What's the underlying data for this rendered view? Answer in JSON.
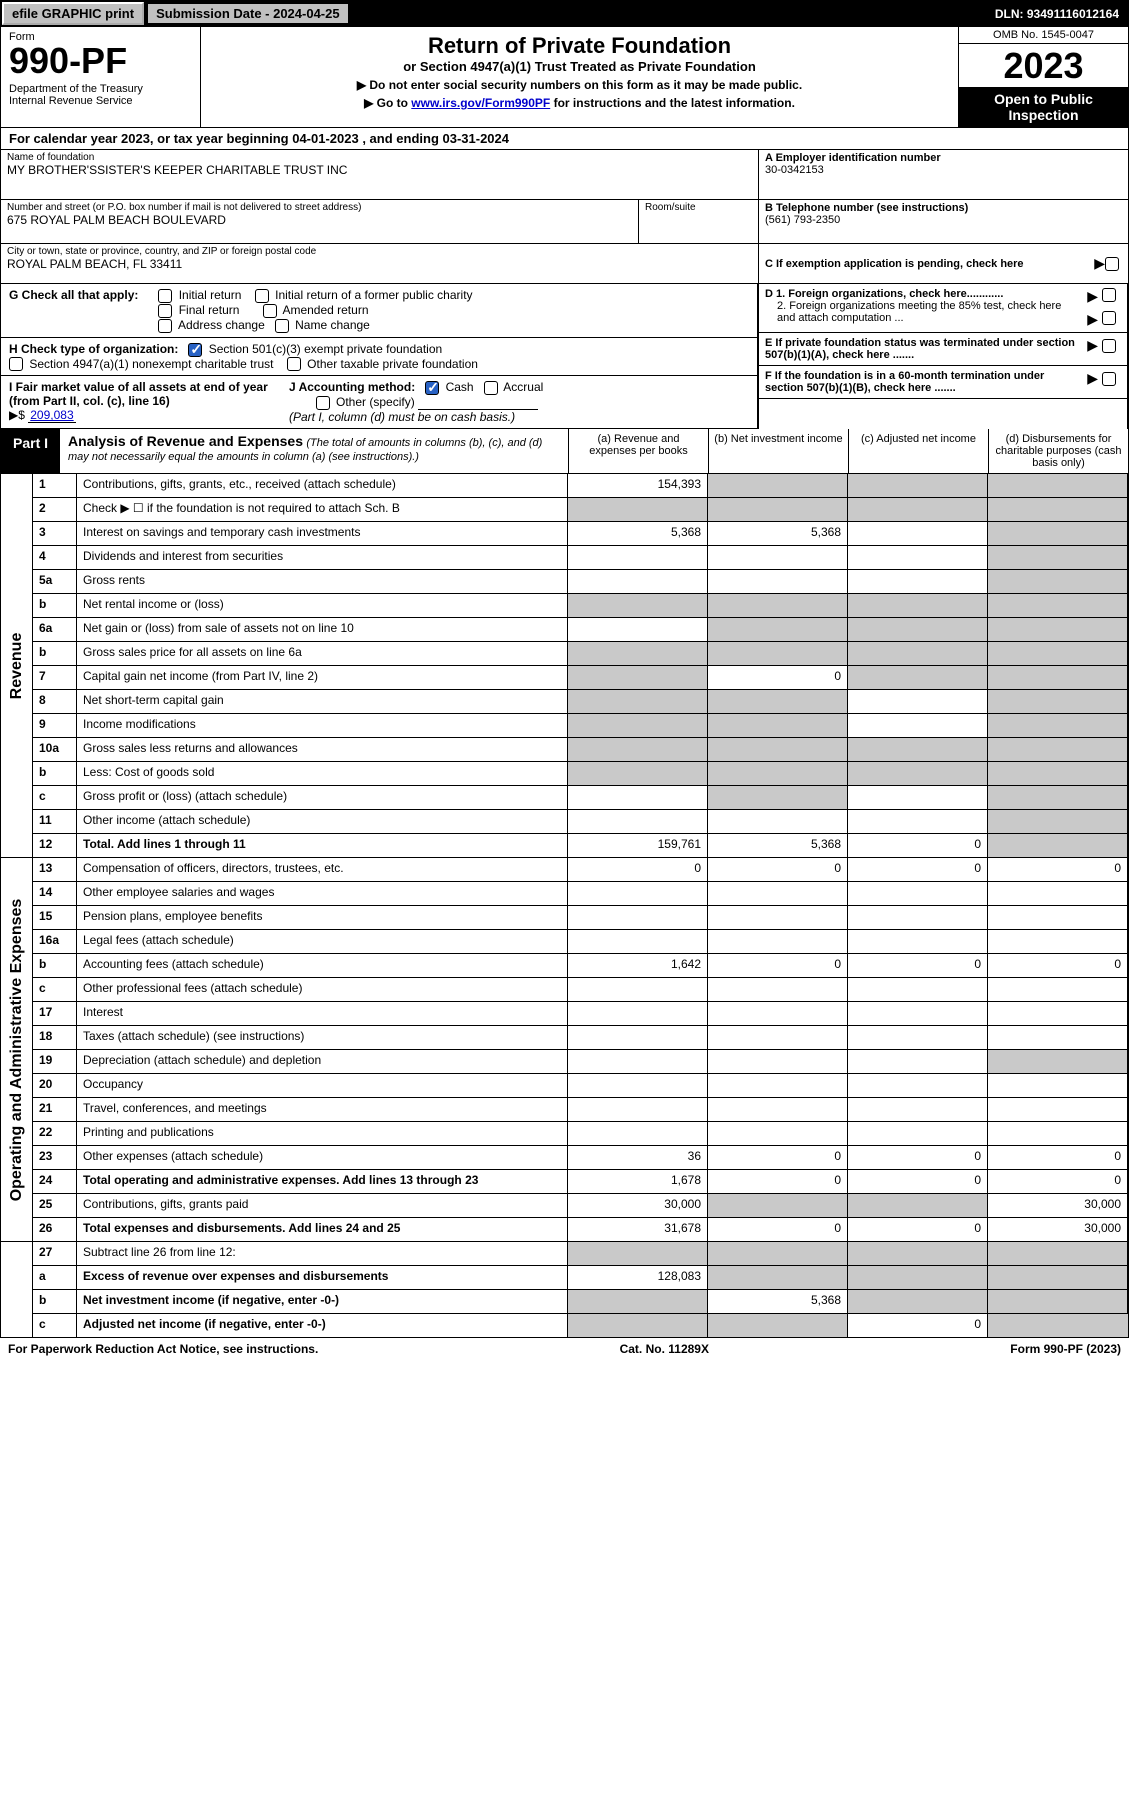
{
  "topbar": {
    "efile": "efile GRAPHIC print",
    "sub_label": "Submission Date - 2024-04-25",
    "dln": "DLN: 93491116012164"
  },
  "header": {
    "form_word": "Form",
    "form_num": "990-PF",
    "dept": "Department of the Treasury\nInternal Revenue Service",
    "title": "Return of Private Foundation",
    "subtitle": "or Section 4947(a)(1) Trust Treated as Private Foundation",
    "instr1": "▶ Do not enter social security numbers on this form as it may be made public.",
    "instr2_pre": "▶ Go to ",
    "instr2_link": "www.irs.gov/Form990PF",
    "instr2_post": " for instructions and the latest information.",
    "omb": "OMB No. 1545-0047",
    "year": "2023",
    "open": "Open to Public Inspection"
  },
  "cal_year": "For calendar year 2023, or tax year beginning 04-01-2023               , and ending 03-31-2024",
  "info": {
    "name_label": "Name of foundation",
    "name": "MY BROTHER'SSISTER'S KEEPER CHARITABLE TRUST INC",
    "addr_label": "Number and street (or P.O. box number if mail is not delivered to street address)",
    "addr": "675 ROYAL PALM BEACH BOULEVARD",
    "room_label": "Room/suite",
    "city_label": "City or town, state or province, country, and ZIP or foreign postal code",
    "city": "ROYAL PALM BEACH, FL  33411",
    "a_label": "A Employer identification number",
    "a_val": "30-0342153",
    "b_label": "B Telephone number (see instructions)",
    "b_val": "(561) 793-2350",
    "c_label": "C If exemption application is pending, check here",
    "d1": "D 1. Foreign organizations, check here............",
    "d2": "2. Foreign organizations meeting the 85% test, check here and attach computation ...",
    "e": "E  If private foundation status was terminated under section 507(b)(1)(A), check here .......",
    "f": "F  If the foundation is in a 60-month termination under section 507(b)(1)(B), check here .......",
    "g_label": "G Check all that apply:",
    "g_opts": [
      "Initial return",
      "Initial return of a former public charity",
      "Final return",
      "Amended return",
      "Address change",
      "Name change"
    ],
    "h_label": "H Check type of organization:",
    "h_opt1": "Section 501(c)(3) exempt private foundation",
    "h_opt2": "Section 4947(a)(1) nonexempt charitable trust",
    "h_opt3": "Other taxable private foundation",
    "i_label": "I Fair market value of all assets at end of year (from Part II, col. (c), line 16)",
    "i_arrow": "▶$",
    "i_val": "209,083",
    "j_label": "J Accounting method:",
    "j_cash": "Cash",
    "j_accrual": "Accrual",
    "j_other": "Other (specify)",
    "j_note": "(Part I, column (d) must be on cash basis.)"
  },
  "part1": {
    "label": "Part I",
    "title": "Analysis of Revenue and Expenses",
    "note": "(The total of amounts in columns (b), (c), and (d) may not necessarily equal the amounts in column (a) (see instructions).)",
    "col_a": "(a)   Revenue and expenses per books",
    "col_b": "(b)   Net investment income",
    "col_c": "(c)   Adjusted net income",
    "col_d": "(d)   Disbursements for charitable purposes (cash basis only)"
  },
  "side_rev": "Revenue",
  "side_exp": "Operating and Administrative Expenses",
  "rows": {
    "1": {
      "n": "1",
      "desc": "Contributions, gifts, grants, etc., received (attach schedule)",
      "a": "154,393",
      "b": "",
      "c": "",
      "d": "",
      "sb": true,
      "sc": true,
      "sd": true
    },
    "2": {
      "n": "2",
      "desc": "Check ▶ ☐ if the foundation is not required to attach Sch. B",
      "a": "",
      "b": "",
      "c": "",
      "d": "",
      "sa": true,
      "sb": true,
      "sc": true,
      "sd": true,
      "bold_not": true
    },
    "3": {
      "n": "3",
      "desc": "Interest on savings and temporary cash investments",
      "a": "5,368",
      "b": "5,368",
      "c": "",
      "d": "",
      "sd": true
    },
    "4": {
      "n": "4",
      "desc": "Dividends and interest from securities",
      "a": "",
      "b": "",
      "c": "",
      "d": "",
      "sd": true
    },
    "5a": {
      "n": "5a",
      "desc": "Gross rents",
      "a": "",
      "b": "",
      "c": "",
      "d": "",
      "sd": true
    },
    "5b": {
      "n": "b",
      "desc": "Net rental income or (loss)",
      "a": "",
      "b": "",
      "c": "",
      "d": "",
      "sa": true,
      "sb": true,
      "sc": true,
      "sd": true,
      "inline": true
    },
    "6a": {
      "n": "6a",
      "desc": "Net gain or (loss) from sale of assets not on line 10",
      "a": "",
      "b": "",
      "c": "",
      "d": "",
      "sb": true,
      "sc": true,
      "sd": true
    },
    "6b": {
      "n": "b",
      "desc": "Gross sales price for all assets on line 6a",
      "a": "",
      "b": "",
      "c": "",
      "d": "",
      "sa": true,
      "sb": true,
      "sc": true,
      "sd": true,
      "inline": true
    },
    "7": {
      "n": "7",
      "desc": "Capital gain net income (from Part IV, line 2)",
      "a": "",
      "b": "0",
      "c": "",
      "d": "",
      "sa": true,
      "sc": true,
      "sd": true
    },
    "8": {
      "n": "8",
      "desc": "Net short-term capital gain",
      "a": "",
      "b": "",
      "c": "",
      "d": "",
      "sa": true,
      "sb": true,
      "sd": true
    },
    "9": {
      "n": "9",
      "desc": "Income modifications",
      "a": "",
      "b": "",
      "c": "",
      "d": "",
      "sa": true,
      "sb": true,
      "sd": true
    },
    "10a": {
      "n": "10a",
      "desc": "Gross sales less returns and allowances",
      "a": "",
      "b": "",
      "c": "",
      "d": "",
      "sa": true,
      "sb": true,
      "sc": true,
      "sd": true,
      "inline": true
    },
    "10b": {
      "n": "b",
      "desc": "Less: Cost of goods sold",
      "a": "",
      "b": "",
      "c": "",
      "d": "",
      "sa": true,
      "sb": true,
      "sc": true,
      "sd": true,
      "inline": true
    },
    "10c": {
      "n": "c",
      "desc": "Gross profit or (loss) (attach schedule)",
      "a": "",
      "b": "",
      "c": "",
      "d": "",
      "sb": true,
      "sd": true
    },
    "11": {
      "n": "11",
      "desc": "Other income (attach schedule)",
      "a": "",
      "b": "",
      "c": "",
      "d": "",
      "sd": true
    },
    "12": {
      "n": "12",
      "desc": "Total. Add lines 1 through 11",
      "a": "159,761",
      "b": "5,368",
      "c": "0",
      "d": "",
      "bold": true,
      "sd": true
    },
    "13": {
      "n": "13",
      "desc": "Compensation of officers, directors, trustees, etc.",
      "a": "0",
      "b": "0",
      "c": "0",
      "d": "0"
    },
    "14": {
      "n": "14",
      "desc": "Other employee salaries and wages",
      "a": "",
      "b": "",
      "c": "",
      "d": ""
    },
    "15": {
      "n": "15",
      "desc": "Pension plans, employee benefits",
      "a": "",
      "b": "",
      "c": "",
      "d": ""
    },
    "16a": {
      "n": "16a",
      "desc": "Legal fees (attach schedule)",
      "a": "",
      "b": "",
      "c": "",
      "d": ""
    },
    "16b": {
      "n": "b",
      "desc": "Accounting fees (attach schedule)",
      "a": "1,642",
      "b": "0",
      "c": "0",
      "d": "0"
    },
    "16c": {
      "n": "c",
      "desc": "Other professional fees (attach schedule)",
      "a": "",
      "b": "",
      "c": "",
      "d": ""
    },
    "17": {
      "n": "17",
      "desc": "Interest",
      "a": "",
      "b": "",
      "c": "",
      "d": ""
    },
    "18": {
      "n": "18",
      "desc": "Taxes (attach schedule) (see instructions)",
      "a": "",
      "b": "",
      "c": "",
      "d": ""
    },
    "19": {
      "n": "19",
      "desc": "Depreciation (attach schedule) and depletion",
      "a": "",
      "b": "",
      "c": "",
      "d": "",
      "sd": true
    },
    "20": {
      "n": "20",
      "desc": "Occupancy",
      "a": "",
      "b": "",
      "c": "",
      "d": ""
    },
    "21": {
      "n": "21",
      "desc": "Travel, conferences, and meetings",
      "a": "",
      "b": "",
      "c": "",
      "d": ""
    },
    "22": {
      "n": "22",
      "desc": "Printing and publications",
      "a": "",
      "b": "",
      "c": "",
      "d": ""
    },
    "23": {
      "n": "23",
      "desc": "Other expenses (attach schedule)",
      "a": "36",
      "b": "0",
      "c": "0",
      "d": "0"
    },
    "24": {
      "n": "24",
      "desc": "Total operating and administrative expenses. Add lines 13 through 23",
      "a": "1,678",
      "b": "0",
      "c": "0",
      "d": "0",
      "bold": true
    },
    "25": {
      "n": "25",
      "desc": "Contributions, gifts, grants paid",
      "a": "30,000",
      "b": "",
      "c": "",
      "d": "30,000",
      "sb": true,
      "sc": true
    },
    "26": {
      "n": "26",
      "desc": "Total expenses and disbursements. Add lines 24 and 25",
      "a": "31,678",
      "b": "0",
      "c": "0",
      "d": "30,000",
      "bold": true
    },
    "27": {
      "n": "27",
      "desc": "Subtract line 26 from line 12:",
      "a": "",
      "b": "",
      "c": "",
      "d": "",
      "sa": true,
      "sb": true,
      "sc": true,
      "sd": true,
      "noside": true
    },
    "27a": {
      "n": "a",
      "desc": "Excess of revenue over expenses and disbursements",
      "a": "128,083",
      "b": "",
      "c": "",
      "d": "",
      "bold": true,
      "sb": true,
      "sc": true,
      "sd": true,
      "noside": true
    },
    "27b": {
      "n": "b",
      "desc": "Net investment income (if negative, enter -0-)",
      "a": "",
      "b": "5,368",
      "c": "",
      "d": "",
      "bold": true,
      "sa": true,
      "sc": true,
      "sd": true,
      "noside": true
    },
    "27c": {
      "n": "c",
      "desc": "Adjusted net income (if negative, enter -0-)",
      "a": "",
      "b": "",
      "c": "0",
      "d": "",
      "bold": true,
      "sa": true,
      "sb": true,
      "sd": true,
      "noside": true
    }
  },
  "footer": {
    "left": "For Paperwork Reduction Act Notice, see instructions.",
    "mid": "Cat. No. 11289X",
    "right": "Form 990-PF (2023)"
  }
}
